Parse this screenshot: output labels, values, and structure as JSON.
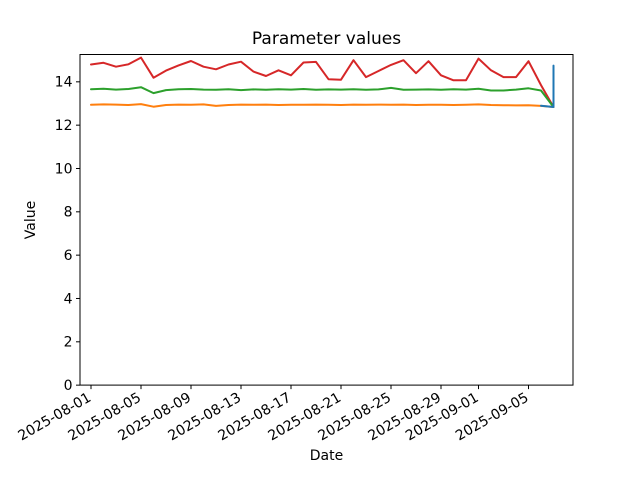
{
  "chart_data": {
    "type": "line",
    "title": "Parameter values",
    "xlabel": "Date",
    "ylabel": "Value",
    "grid": false,
    "legend": false,
    "ylim": [
      0,
      15.26
    ],
    "y_ticks": [
      0,
      2,
      4,
      6,
      8,
      10,
      12,
      14
    ],
    "x_tick_labels": [
      "2025-08-01",
      "2025-08-05",
      "2025-08-09",
      "2025-08-13",
      "2025-08-17",
      "2025-08-21",
      "2025-08-25",
      "2025-08-29",
      "2025-09-01",
      "2025-09-05"
    ],
    "dates": [
      "2025-08-01",
      "2025-08-02",
      "2025-08-03",
      "2025-08-04",
      "2025-08-05",
      "2025-08-06",
      "2025-08-07",
      "2025-08-08",
      "2025-08-09",
      "2025-08-10",
      "2025-08-11",
      "2025-08-12",
      "2025-08-13",
      "2025-08-14",
      "2025-08-15",
      "2025-08-16",
      "2025-08-17",
      "2025-08-18",
      "2025-08-19",
      "2025-08-20",
      "2025-08-21",
      "2025-08-22",
      "2025-08-23",
      "2025-08-24",
      "2025-08-25",
      "2025-08-26",
      "2025-08-27",
      "2025-08-28",
      "2025-08-29",
      "2025-08-30",
      "2025-08-31",
      "2025-09-01",
      "2025-09-02",
      "2025-09-03",
      "2025-09-04",
      "2025-09-05",
      "2025-09-06",
      "2025-09-07"
    ],
    "series": [
      {
        "name": "red",
        "color": "#d62728",
        "values": [
          14.8,
          14.88,
          14.7,
          14.81,
          15.12,
          14.19,
          14.52,
          14.76,
          14.96,
          14.7,
          14.58,
          14.8,
          14.93,
          14.47,
          14.27,
          14.53,
          14.3,
          14.89,
          14.92,
          14.12,
          14.1,
          15.0,
          14.22,
          14.5,
          14.78,
          15.0,
          14.4,
          14.95,
          14.3,
          14.07,
          14.07,
          15.07,
          14.53,
          14.22,
          14.22,
          14.95,
          13.85,
          12.84
        ]
      },
      {
        "name": "green",
        "color": "#2ca02c",
        "values": [
          13.66,
          13.68,
          13.64,
          13.67,
          13.75,
          13.48,
          13.62,
          13.66,
          13.67,
          13.64,
          13.63,
          13.66,
          13.62,
          13.65,
          13.63,
          13.66,
          13.64,
          13.67,
          13.63,
          13.65,
          13.64,
          13.66,
          13.63,
          13.65,
          13.72,
          13.63,
          13.64,
          13.65,
          13.63,
          13.66,
          13.64,
          13.68,
          13.6,
          13.6,
          13.64,
          13.7,
          13.6,
          12.84
        ]
      },
      {
        "name": "orange",
        "color": "#ff7f0e",
        "values": [
          12.94,
          12.96,
          12.95,
          12.93,
          12.97,
          12.85,
          12.93,
          12.95,
          12.94,
          12.96,
          12.89,
          12.93,
          12.95,
          12.94,
          12.95,
          12.93,
          12.94,
          12.94,
          12.95,
          12.94,
          12.93,
          12.95,
          12.94,
          12.95,
          12.94,
          12.95,
          12.93,
          12.94,
          12.94,
          12.93,
          12.94,
          12.96,
          12.93,
          12.92,
          12.91,
          12.92,
          12.89,
          12.84
        ]
      },
      {
        "name": "blue",
        "color": "#1f77b4",
        "dates": [
          "2025-09-06",
          "2025-09-07",
          "2025-09-07"
        ],
        "values": [
          12.9,
          12.84,
          14.75
        ]
      }
    ]
  }
}
